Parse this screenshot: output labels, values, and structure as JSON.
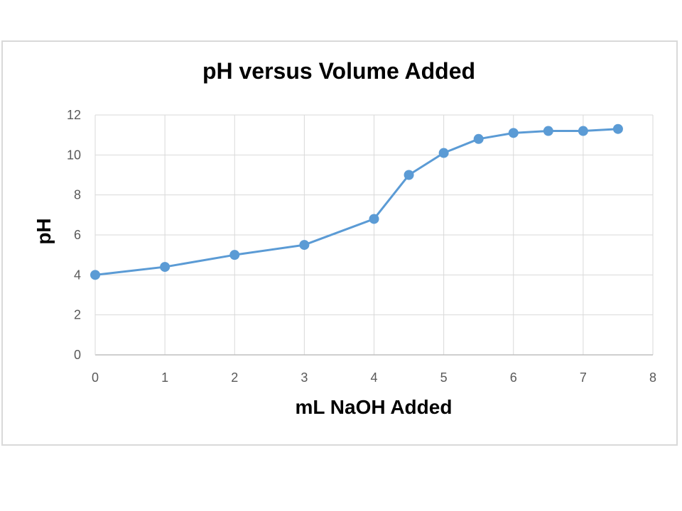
{
  "chart_data": {
    "type": "line",
    "title": "pH versus Volume Added",
    "xlabel": "mL NaOH Added",
    "ylabel": "pH",
    "xlim": [
      0,
      8
    ],
    "ylim": [
      0,
      12
    ],
    "xticks": [
      0,
      1,
      2,
      3,
      4,
      5,
      6,
      7,
      8
    ],
    "yticks": [
      0,
      2,
      4,
      6,
      8,
      10,
      12
    ],
    "grid": true,
    "legend": "none",
    "markers": true,
    "series": [
      {
        "color": "#5b9bd5",
        "x": [
          0,
          1,
          2,
          3,
          4,
          4.5,
          5,
          5.5,
          6,
          6.5,
          7,
          7.5
        ],
        "y": [
          4.0,
          4.4,
          5.0,
          5.5,
          6.8,
          9.0,
          10.1,
          10.8,
          11.1,
          11.2,
          11.2,
          11.3
        ]
      }
    ]
  }
}
